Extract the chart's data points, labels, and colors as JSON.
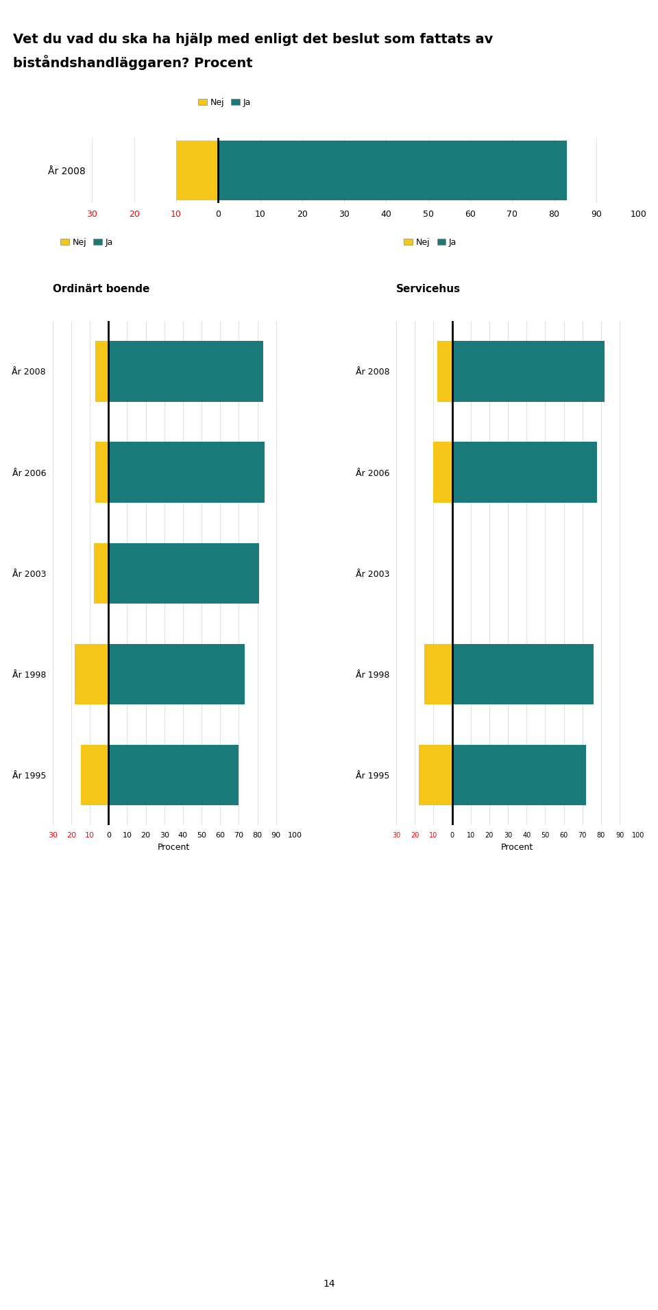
{
  "title_line1": "Vet du vad du ska ha hjälp med enligt det beslut som fattats av",
  "title_line2": "biståndshandläggaren? Procent",
  "title_fontsize": 14,
  "color_nej": "#F5C518",
  "color_ja": "#1A7A7A",
  "top_chart": {
    "year": "År 2008",
    "nej": 10,
    "ja": 83
  },
  "ordinart_boende": {
    "title": "Ordinärt boende",
    "years": [
      "År 2008",
      "År 2006",
      "År 2003",
      "År 1998",
      "År 1995"
    ],
    "nej": [
      7,
      7,
      8,
      18,
      15
    ],
    "ja": [
      83,
      84,
      81,
      73,
      70
    ],
    "xlabel": "Procent"
  },
  "servicehus": {
    "title": "Servicehus",
    "years": [
      "År 2008",
      "År 2006",
      "År 2003",
      "År 1998",
      "År 1995"
    ],
    "nej": [
      8,
      10,
      0,
      15,
      18
    ],
    "ja": [
      82,
      78,
      0,
      76,
      72
    ],
    "xlabel": "Procent"
  },
  "page_number": "14",
  "xticks_top": [
    -30,
    -20,
    -10,
    0,
    10,
    20,
    30,
    40,
    50,
    60,
    70,
    80,
    90,
    100
  ],
  "xlabels_top": [
    "30",
    "20",
    "10",
    "0",
    "10",
    "20",
    "30",
    "40",
    "50",
    "60",
    "70",
    "80",
    "90",
    "100"
  ],
  "xticks_sub": [
    -30,
    -20,
    -10,
    0,
    10,
    20,
    30,
    40,
    50,
    60,
    70,
    80,
    90,
    100
  ],
  "xlabels_sub": [
    "30",
    "20",
    "10",
    "0",
    "10",
    "20",
    "30",
    "40",
    "50",
    "60",
    "70",
    "80",
    "90",
    "100"
  ],
  "xticks_right": [
    -30,
    -20,
    -10,
    0,
    10,
    20,
    30,
    40,
    50,
    60,
    70,
    80,
    90,
    100
  ],
  "xlabels_right": [
    "30",
    "20",
    "10",
    "0",
    "10",
    "20",
    "30",
    "40",
    "50",
    "60",
    "70",
    "80",
    "90",
    "100"
  ]
}
